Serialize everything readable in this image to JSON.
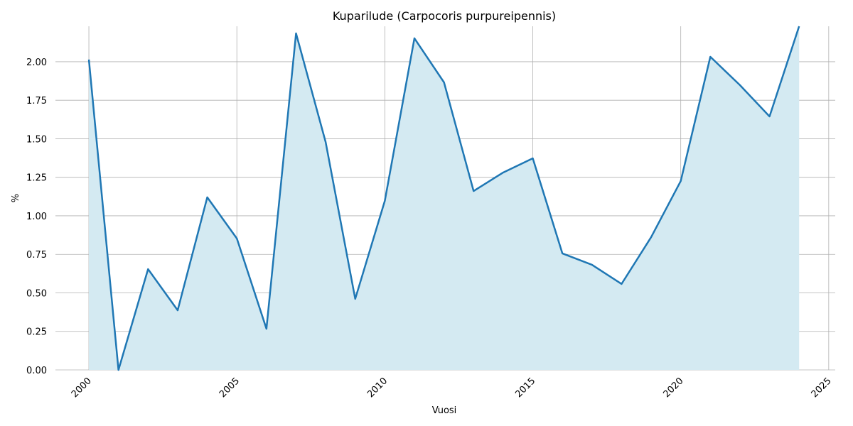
{
  "chart_data": {
    "type": "area-line",
    "title": "Kuparilude (Carpocoris purpureipennis)",
    "xlabel": "Vuosi",
    "ylabel": "%",
    "x": [
      2000,
      2001,
      2002,
      2003,
      2004,
      2005,
      2006,
      2007,
      2008,
      2009,
      2010,
      2011,
      2012,
      2013,
      2014,
      2015,
      2016,
      2017,
      2018,
      2019,
      2020,
      2021,
      2022,
      2023,
      2024
    ],
    "series": [
      {
        "name": "Kuparilude",
        "color": "#1f77b4",
        "fill": "#d4eaf2",
        "values": [
          2.014,
          0,
          0.654,
          0.387,
          1.12,
          0.853,
          0.267,
          2.184,
          1.479,
          0.461,
          1.097,
          2.152,
          1.866,
          1.161,
          1.281,
          1.373,
          0.756,
          0.682,
          0.558,
          0.862,
          1.226,
          2.032,
          1.848,
          1.645,
          2.23
        ]
      }
    ],
    "xlim": [
      1998.87,
      2025.22
    ],
    "ylim": [
      0,
      2.23
    ],
    "xticks": [
      2000,
      2005,
      2010,
      2015,
      2020,
      2025
    ],
    "yticks": [
      {
        "value": 0,
        "label": "0.00"
      },
      {
        "value": 0.25,
        "label": "0.25"
      },
      {
        "value": 0.5,
        "label": "0.50"
      },
      {
        "value": 0.75,
        "label": "0.75"
      },
      {
        "value": 1,
        "label": "1.00"
      },
      {
        "value": 1.25,
        "label": "1.25"
      },
      {
        "value": 1.5,
        "label": "1.50"
      },
      {
        "value": 1.75,
        "label": "1.75"
      },
      {
        "value": 2,
        "label": "2.00"
      }
    ],
    "grid": true
  }
}
